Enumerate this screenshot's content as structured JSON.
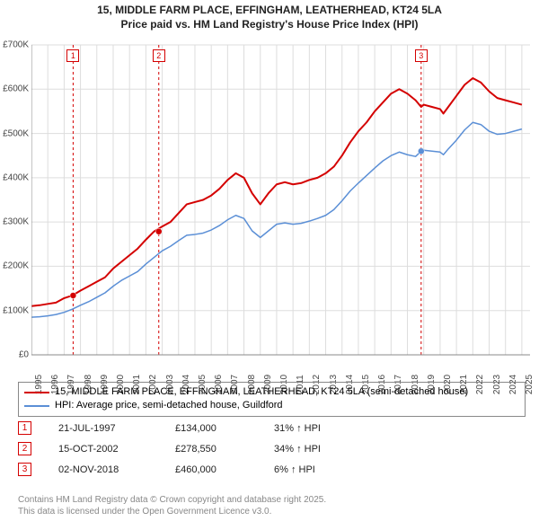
{
  "title_line1": "15, MIDDLE FARM PLACE, EFFINGHAM, LEATHERHEAD, KT24 5LA",
  "title_line2": "Price paid vs. HM Land Registry's House Price Index (HPI)",
  "chart": {
    "type": "line",
    "background_color": "#ffffff",
    "grid_color": "#dddddd",
    "axis_color": "#888888",
    "ylim": [
      0,
      700000
    ],
    "ytick_step": 100000,
    "ytick_labels": [
      "£0",
      "£100K",
      "£200K",
      "£300K",
      "£400K",
      "£500K",
      "£600K",
      "£700K"
    ],
    "xlim": [
      1995,
      2025.5
    ],
    "xticks": [
      1995,
      1996,
      1997,
      1998,
      1999,
      2000,
      2001,
      2002,
      2003,
      2004,
      2005,
      2006,
      2007,
      2008,
      2009,
      2010,
      2011,
      2012,
      2013,
      2014,
      2015,
      2016,
      2017,
      2018,
      2019,
      2020,
      2021,
      2022,
      2023,
      2024,
      2025
    ],
    "tick_fontsize": 10,
    "series": [
      {
        "name": "property",
        "color": "#d40000",
        "line_width": 2,
        "data": [
          [
            1995,
            110000
          ],
          [
            1995.5,
            112000
          ],
          [
            1996,
            115000
          ],
          [
            1996.5,
            118000
          ],
          [
            1997,
            128000
          ],
          [
            1997.5,
            134000
          ],
          [
            1998,
            145000
          ],
          [
            1998.5,
            155000
          ],
          [
            1999,
            165000
          ],
          [
            1999.5,
            175000
          ],
          [
            2000,
            195000
          ],
          [
            2000.5,
            210000
          ],
          [
            2001,
            225000
          ],
          [
            2001.5,
            240000
          ],
          [
            2002,
            260000
          ],
          [
            2002.5,
            278550
          ],
          [
            2003,
            290000
          ],
          [
            2003.5,
            300000
          ],
          [
            2004,
            320000
          ],
          [
            2004.5,
            340000
          ],
          [
            2005,
            345000
          ],
          [
            2005.5,
            350000
          ],
          [
            2006,
            360000
          ],
          [
            2006.5,
            375000
          ],
          [
            2007,
            395000
          ],
          [
            2007.5,
            410000
          ],
          [
            2008,
            400000
          ],
          [
            2008.5,
            365000
          ],
          [
            2009,
            340000
          ],
          [
            2009.5,
            365000
          ],
          [
            2010,
            385000
          ],
          [
            2010.5,
            390000
          ],
          [
            2011,
            385000
          ],
          [
            2011.5,
            388000
          ],
          [
            2012,
            395000
          ],
          [
            2012.5,
            400000
          ],
          [
            2013,
            410000
          ],
          [
            2013.5,
            425000
          ],
          [
            2014,
            450000
          ],
          [
            2014.5,
            480000
          ],
          [
            2015,
            505000
          ],
          [
            2015.5,
            525000
          ],
          [
            2016,
            550000
          ],
          [
            2016.5,
            570000
          ],
          [
            2017,
            590000
          ],
          [
            2017.5,
            600000
          ],
          [
            2018,
            590000
          ],
          [
            2018.5,
            575000
          ],
          [
            2018.84,
            560000
          ],
          [
            2019,
            565000
          ],
          [
            2019.5,
            560000
          ],
          [
            2020,
            555000
          ],
          [
            2020.2,
            545000
          ],
          [
            2020.5,
            560000
          ],
          [
            2021,
            585000
          ],
          [
            2021.5,
            610000
          ],
          [
            2022,
            625000
          ],
          [
            2022.5,
            615000
          ],
          [
            2023,
            595000
          ],
          [
            2023.5,
            580000
          ],
          [
            2024,
            575000
          ],
          [
            2024.5,
            570000
          ],
          [
            2025,
            565000
          ]
        ]
      },
      {
        "name": "hpi",
        "color": "#5b8fd6",
        "line_width": 1.5,
        "data": [
          [
            1995,
            85000
          ],
          [
            1995.5,
            86000
          ],
          [
            1996,
            88000
          ],
          [
            1996.5,
            91000
          ],
          [
            1997,
            96000
          ],
          [
            1997.5,
            103000
          ],
          [
            1998,
            112000
          ],
          [
            1998.5,
            120000
          ],
          [
            1999,
            130000
          ],
          [
            1999.5,
            140000
          ],
          [
            2000,
            155000
          ],
          [
            2000.5,
            168000
          ],
          [
            2001,
            178000
          ],
          [
            2001.5,
            188000
          ],
          [
            2002,
            205000
          ],
          [
            2002.5,
            220000
          ],
          [
            2003,
            235000
          ],
          [
            2003.5,
            245000
          ],
          [
            2004,
            258000
          ],
          [
            2004.5,
            270000
          ],
          [
            2005,
            272000
          ],
          [
            2005.5,
            275000
          ],
          [
            2006,
            282000
          ],
          [
            2006.5,
            292000
          ],
          [
            2007,
            305000
          ],
          [
            2007.5,
            315000
          ],
          [
            2008,
            308000
          ],
          [
            2008.5,
            280000
          ],
          [
            2009,
            265000
          ],
          [
            2009.5,
            280000
          ],
          [
            2010,
            295000
          ],
          [
            2010.5,
            298000
          ],
          [
            2011,
            295000
          ],
          [
            2011.5,
            297000
          ],
          [
            2012,
            302000
          ],
          [
            2012.5,
            308000
          ],
          [
            2013,
            315000
          ],
          [
            2013.5,
            328000
          ],
          [
            2014,
            348000
          ],
          [
            2014.5,
            370000
          ],
          [
            2015,
            388000
          ],
          [
            2015.5,
            405000
          ],
          [
            2016,
            422000
          ],
          [
            2016.5,
            438000
          ],
          [
            2017,
            450000
          ],
          [
            2017.5,
            458000
          ],
          [
            2018,
            452000
          ],
          [
            2018.5,
            448000
          ],
          [
            2018.84,
            460000
          ],
          [
            2019,
            462000
          ],
          [
            2019.5,
            460000
          ],
          [
            2020,
            458000
          ],
          [
            2020.2,
            452000
          ],
          [
            2020.5,
            465000
          ],
          [
            2021,
            485000
          ],
          [
            2021.5,
            508000
          ],
          [
            2022,
            525000
          ],
          [
            2022.5,
            520000
          ],
          [
            2023,
            505000
          ],
          [
            2023.5,
            498000
          ],
          [
            2024,
            500000
          ],
          [
            2024.5,
            505000
          ],
          [
            2025,
            510000
          ]
        ]
      }
    ],
    "sale_markers": [
      {
        "n": "1",
        "x": 1997.55,
        "color": "#d40000",
        "badge_top": 55
      },
      {
        "n": "2",
        "x": 2002.79,
        "color": "#d40000",
        "badge_top": 55
      },
      {
        "n": "3",
        "x": 2018.84,
        "color": "#d40000",
        "badge_top": 55
      }
    ],
    "sale_points": [
      {
        "x": 1997.55,
        "y": 134000,
        "color": "#d40000"
      },
      {
        "x": 2002.79,
        "y": 278550,
        "color": "#d40000"
      },
      {
        "x": 2018.84,
        "y": 460000,
        "color": "#5b8fd6"
      }
    ]
  },
  "legend": {
    "items": [
      {
        "color": "#d40000",
        "label": "15, MIDDLE FARM PLACE, EFFINGHAM, LEATHERHEAD, KT24 5LA (semi-detached house)"
      },
      {
        "color": "#5b8fd6",
        "label": "HPI: Average price, semi-detached house, Guildford"
      }
    ]
  },
  "sales": [
    {
      "n": "1",
      "color": "#d40000",
      "date": "21-JUL-1997",
      "price": "£134,000",
      "hpi": "31% ↑ HPI"
    },
    {
      "n": "2",
      "color": "#d40000",
      "date": "15-OCT-2002",
      "price": "£278,550",
      "hpi": "34% ↑ HPI"
    },
    {
      "n": "3",
      "color": "#d40000",
      "date": "02-NOV-2018",
      "price": "£460,000",
      "hpi": "6% ↑ HPI"
    }
  ],
  "footer_line1": "Contains HM Land Registry data © Crown copyright and database right 2025.",
  "footer_line2": "This data is licensed under the Open Government Licence v3.0."
}
